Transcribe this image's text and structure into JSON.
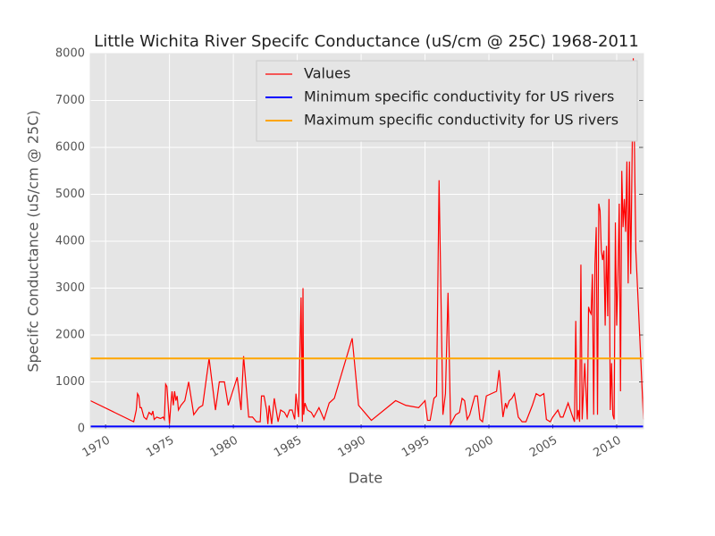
{
  "chart_data": {
    "type": "line",
    "title": "Little Wichita River Specifc Conductance (uS/cm @ 25C) 1968-2011",
    "x_label": "Date",
    "y_label": "Specifc Conductance (uS/cm @ 25C)",
    "xlim": [
      1968.8,
      2012.1
    ],
    "ylim": [
      0,
      8000
    ],
    "xticks": [
      1970,
      1975,
      1980,
      1985,
      1990,
      1995,
      2000,
      2005,
      2010
    ],
    "yticks": [
      0,
      1000,
      2000,
      3000,
      4000,
      5000,
      6000,
      7000,
      8000
    ],
    "grid": true,
    "legend": "upper right",
    "series": [
      {
        "name": "Values",
        "color": "#ff0000",
        "x": [
          1968.81,
          1972.2,
          1972.4,
          1972.5,
          1972.6,
          1972.7,
          1972.8,
          1973.0,
          1973.2,
          1973.4,
          1973.6,
          1973.7,
          1973.8,
          1974.0,
          1974.3,
          1974.5,
          1974.6,
          1974.7,
          1974.8,
          1975.0,
          1975.1,
          1975.2,
          1975.3,
          1975.4,
          1975.5,
          1975.6,
          1975.7,
          1975.9,
          1976.2,
          1976.5,
          1976.9,
          1977.3,
          1977.6,
          1978.1,
          1978.6,
          1978.9,
          1979.3,
          1979.6,
          1980.3,
          1980.6,
          1980.8,
          1981.2,
          1981.5,
          1981.8,
          1982.1,
          1982.2,
          1982.4,
          1982.6,
          1982.7,
          1982.8,
          1983.0,
          1983.2,
          1983.5,
          1983.7,
          1984.0,
          1984.2,
          1984.4,
          1984.6,
          1984.8,
          1984.9,
          1985.1,
          1985.3,
          1985.4,
          1985.45,
          1985.5,
          1985.6,
          1985.8,
          1986.1,
          1986.3,
          1986.7,
          1987.1,
          1987.5,
          1987.9,
          1989.3,
          1989.8,
          1990.8,
          1992.7,
          1993.5,
          1994.5,
          1995.0,
          1995.2,
          1995.4,
          1995.7,
          1995.9,
          1996.1,
          1996.4,
          1996.6,
          1996.8,
          1997.0,
          1997.4,
          1997.7,
          1997.9,
          1998.1,
          1998.3,
          1998.5,
          1998.9,
          1999.1,
          1999.3,
          1999.5,
          1999.8,
          2000.6,
          2000.8,
          2001.1,
          2001.3,
          2001.4,
          2001.6,
          2001.8,
          2002.0,
          2002.3,
          2002.6,
          2002.9,
          2003.4,
          2003.7,
          2004.0,
          2004.3,
          2004.5,
          2004.8,
          2005.0,
          2005.4,
          2005.6,
          2005.8,
          2006.0,
          2006.2,
          2006.5,
          2006.7,
          2006.8,
          2006.9,
          2007.0,
          2007.1,
          2007.2,
          2007.3,
          2007.5,
          2007.7,
          2007.8,
          2007.9,
          2008.0,
          2008.1,
          2008.2,
          2008.3,
          2008.4,
          2008.5,
          2008.6,
          2008.7,
          2008.8,
          2008.9,
          2009.0,
          2009.1,
          2009.2,
          2009.3,
          2009.4,
          2009.5,
          2009.6,
          2009.7,
          2009.8,
          2009.9,
          2010.0,
          2010.1,
          2010.2,
          2010.3,
          2010.4,
          2010.5,
          2010.6,
          2010.7,
          2010.8,
          2010.9,
          2011.0,
          2011.1,
          2011.3,
          2011.5,
          2012.1
        ],
        "values": [
          600,
          150,
          400,
          750,
          700,
          450,
          450,
          250,
          200,
          350,
          300,
          380,
          200,
          250,
          220,
          250,
          200,
          950,
          900,
          100,
          500,
          800,
          500,
          800,
          600,
          700,
          400,
          500,
          600,
          1000,
          300,
          450,
          500,
          1500,
          400,
          1000,
          1000,
          500,
          1100,
          400,
          1550,
          250,
          250,
          150,
          150,
          700,
          700,
          400,
          100,
          500,
          100,
          650,
          150,
          400,
          350,
          250,
          400,
          400,
          200,
          750,
          250,
          2800,
          150,
          3000,
          300,
          550,
          400,
          350,
          250,
          450,
          200,
          550,
          650,
          1930,
          500,
          180,
          600,
          500,
          450,
          600,
          180,
          180,
          650,
          700,
          5300,
          300,
          750,
          2900,
          100,
          300,
          350,
          650,
          600,
          200,
          300,
          700,
          700,
          200,
          150,
          700,
          800,
          1250,
          250,
          550,
          450,
          600,
          650,
          750,
          250,
          150,
          150,
          500,
          750,
          700,
          750,
          200,
          150,
          250,
          400,
          250,
          250,
          400,
          550,
          300,
          150,
          2300,
          200,
          400,
          150,
          3500,
          200,
          1400,
          200,
          2600,
          2500,
          2450,
          3300,
          300,
          3500,
          4300,
          300,
          4800,
          4650,
          3800,
          3600,
          3800,
          2200,
          3900,
          2400,
          4900,
          400,
          1400,
          300,
          200,
          4400,
          2200,
          3300,
          4800,
          800,
          5500,
          4300,
          4900,
          4200,
          5700,
          3100,
          5700,
          3300,
          7900,
          3800,
          200
        ]
      },
      {
        "name": "Minimum specific conductivity for US rivers",
        "color": "#0000ff",
        "x": [
          1968.8,
          2012.1
        ],
        "values": [
          50,
          50
        ]
      },
      {
        "name": "Maximum specific conductivity for US rivers",
        "color": "#ffa500",
        "x": [
          1968.8,
          2012.1
        ],
        "values": [
          1500,
          1500
        ]
      }
    ]
  }
}
